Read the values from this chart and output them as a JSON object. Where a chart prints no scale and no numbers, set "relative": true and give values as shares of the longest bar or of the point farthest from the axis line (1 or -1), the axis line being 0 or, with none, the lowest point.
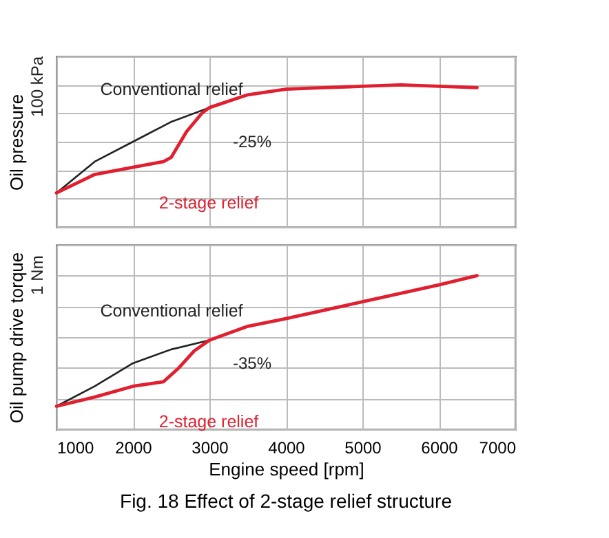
{
  "chart_data": [
    {
      "type": "line",
      "relative": true,
      "ylabel": "Oil pressure",
      "xlim": [
        1000,
        7000
      ],
      "xticks": [
        1000,
        2000,
        3000,
        4000,
        5000,
        6000,
        7000
      ],
      "grid": true,
      "legend": false,
      "tick_labels": false,
      "series": [
        {
          "name": "Conventional relief",
          "color": "#222222",
          "x": [
            1000,
            1500,
            2000,
            2500,
            3000
          ],
          "values": [
            0.24,
            0.46,
            0.6,
            0.74,
            0.84
          ]
        },
        {
          "name": "2-stage relief",
          "color": "#e02030",
          "x": [
            1000,
            1500,
            2000,
            2400,
            2500,
            2700,
            2900,
            3000,
            3500,
            4000,
            4500,
            5000,
            5500,
            6000,
            6500
          ],
          "values": [
            0.24,
            0.37,
            0.42,
            0.46,
            0.49,
            0.67,
            0.8,
            0.84,
            0.93,
            0.97,
            0.98,
            0.99,
            1.0,
            0.99,
            0.98
          ]
        }
      ],
      "annotations": [
        "100 kPa",
        "-25%"
      ]
    },
    {
      "type": "line",
      "relative": true,
      "ylabel": "Oil pump drive torque",
      "xlabel": "Engine speed [rpm]",
      "title": "Fig. 18    Effect of 2-stage relief structure",
      "xlim": [
        1000,
        7000
      ],
      "xticks": [
        1000,
        2000,
        3000,
        4000,
        5000,
        6000,
        7000
      ],
      "grid": true,
      "legend": false,
      "tick_labels": "x",
      "series": [
        {
          "name": "Conventional relief",
          "color": "#222222",
          "x": [
            1000,
            1500,
            2000,
            2500,
            3000
          ],
          "values": [
            0.15,
            0.28,
            0.43,
            0.52,
            0.58
          ]
        },
        {
          "name": "2-stage relief",
          "color": "#e02030",
          "x": [
            1000,
            1500,
            2000,
            2400,
            2600,
            2800,
            3000,
            3500,
            4000,
            5000,
            6000,
            6500
          ],
          "values": [
            0.15,
            0.21,
            0.28,
            0.31,
            0.4,
            0.51,
            0.58,
            0.67,
            0.72,
            0.83,
            0.94,
            1.0
          ]
        }
      ],
      "annotations": [
        "1 Nm",
        "-35%"
      ]
    }
  ]
}
